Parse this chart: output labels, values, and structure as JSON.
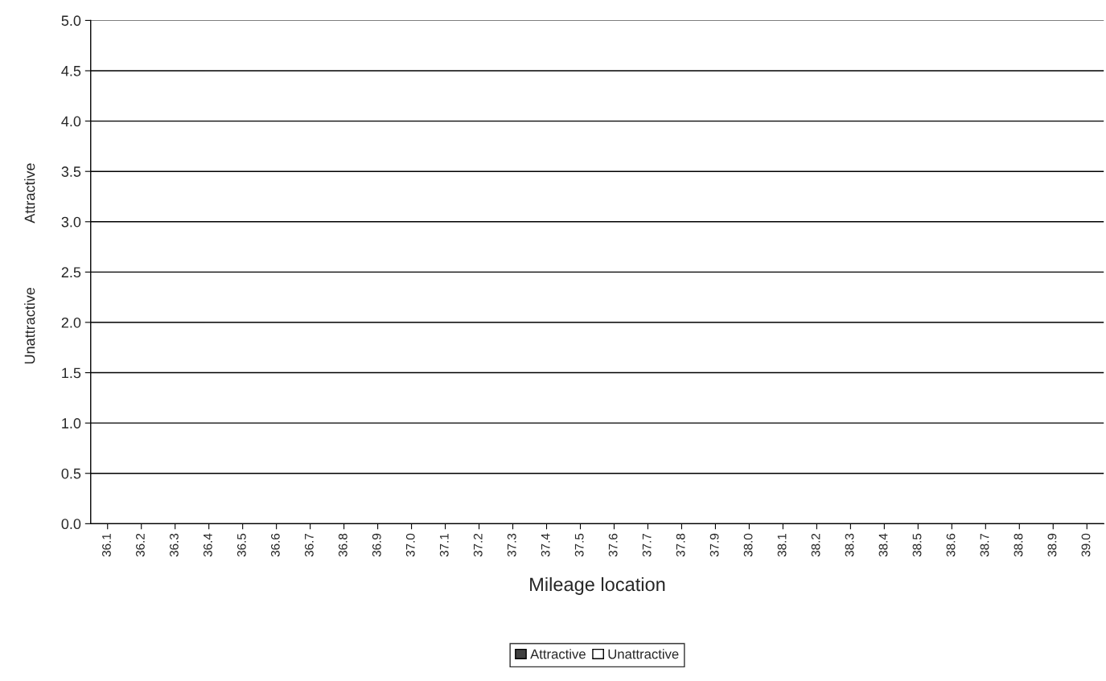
{
  "chart_data": {
    "type": "bar",
    "xlabel": "Mileage location",
    "annotations": [
      "Attractive",
      "Unattractive"
    ],
    "categories": [
      "36.1",
      "36.2",
      "36.3",
      "36.4",
      "36.5",
      "36.6",
      "36.7",
      "36.8",
      "36.9",
      "37.0",
      "37.1",
      "37.2",
      "37.3",
      "37.4",
      "37.5",
      "37.6",
      "37.7",
      "37.8",
      "37.9",
      "38.0",
      "38.1",
      "38.2",
      "38.3",
      "38.4",
      "38.5",
      "38.6",
      "38.7",
      "38.8",
      "38.9",
      "39.0"
    ],
    "series": [
      {
        "name": "Attractive",
        "color": "#404040",
        "values": [
          null,
          null,
          null,
          null,
          null,
          null,
          null,
          null,
          null,
          null,
          null,
          null,
          null,
          null,
          null,
          null,
          null,
          null,
          null,
          null,
          null,
          null,
          null,
          null,
          null,
          null,
          null,
          null,
          null,
          null
        ]
      },
      {
        "name": "Unattractive",
        "color": "#ffffff",
        "values": [
          null,
          null,
          null,
          null,
          null,
          null,
          null,
          null,
          null,
          null,
          null,
          null,
          null,
          null,
          null,
          null,
          null,
          null,
          null,
          null,
          null,
          null,
          null,
          null,
          null,
          null,
          null,
          null,
          null,
          null
        ]
      }
    ],
    "ylim": [
      0.0,
      5.0
    ],
    "yticks": [
      {
        "value": 0,
        "label": "0.0"
      },
      0.5,
      {
        "value": 1,
        "label": "1.0"
      },
      1.5,
      {
        "value": 2,
        "label": "2.0"
      },
      2.5,
      {
        "value": 3,
        "label": "3.0"
      },
      3.5,
      {
        "value": 4,
        "label": "4.0"
      },
      4.5,
      {
        "value": 5,
        "label": "5.0"
      }
    ],
    "grid": "y",
    "legend": "bottom"
  }
}
